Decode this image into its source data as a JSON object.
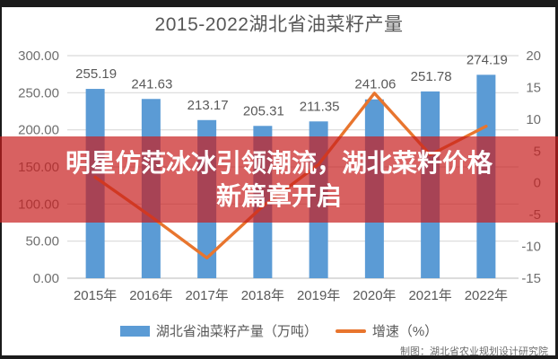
{
  "title": "2015-2022湖北省油菜籽产量",
  "overlay_banner": {
    "line1": "明星仿范冰冰引领潮流，湖北菜籽价格",
    "line2": "新篇章开启",
    "background": "rgba(200,30,30,0.70)",
    "text_color": "#ffffff"
  },
  "legend": {
    "bar_label": "湖北省油菜籽产量（万吨）",
    "line_label": "增速（%）"
  },
  "attribution": "制图：湖北省农业规划设计研究院",
  "colors": {
    "bar": "#5b9bd5",
    "line": "#e8752e",
    "grid": "#d9d9d9",
    "zero_axis": "#c8c8c8",
    "axis_text": "#6f6f6f",
    "label_text": "#595959",
    "frame": "#1b1b1b",
    "background": "#ffffff"
  },
  "chart_data": {
    "type": "bar",
    "subtype": "bar-line-combo",
    "title": "2015-2022湖北省油菜籽产量",
    "categories": [
      "2015年",
      "2016年",
      "2017年",
      "2018年",
      "2019年",
      "2020年",
      "2021年",
      "2022年"
    ],
    "series": [
      {
        "name": "湖北省油菜籽产量（万吨）",
        "type": "bar",
        "axis": "left",
        "color": "#5b9bd5",
        "values": [
          255.19,
          241.63,
          213.17,
          205.31,
          211.35,
          241.06,
          251.78,
          274.19
        ]
      },
      {
        "name": "增速（%）",
        "type": "line",
        "axis": "right",
        "color": "#e8752e",
        "values_estimated": true,
        "values": [
          0.9,
          -5.3,
          -11.8,
          -3.7,
          2.9,
          14.1,
          4.4,
          8.9
        ]
      }
    ],
    "left_axis": {
      "range": [
        0,
        300
      ],
      "ticks": [
        "300.00",
        "250.00",
        "200.00",
        "150.00",
        "100.00",
        "50.00",
        "0.00"
      ]
    },
    "right_axis": {
      "range": [
        -15,
        20
      ],
      "ticks": [
        "20",
        "15",
        "10",
        "5",
        "0",
        "-5",
        "-10",
        "-15"
      ]
    },
    "grid": "horizontal light-gray lines at left-axis ticks",
    "legend_position": "bottom center",
    "data_labels": "above each bar, two decimals"
  }
}
